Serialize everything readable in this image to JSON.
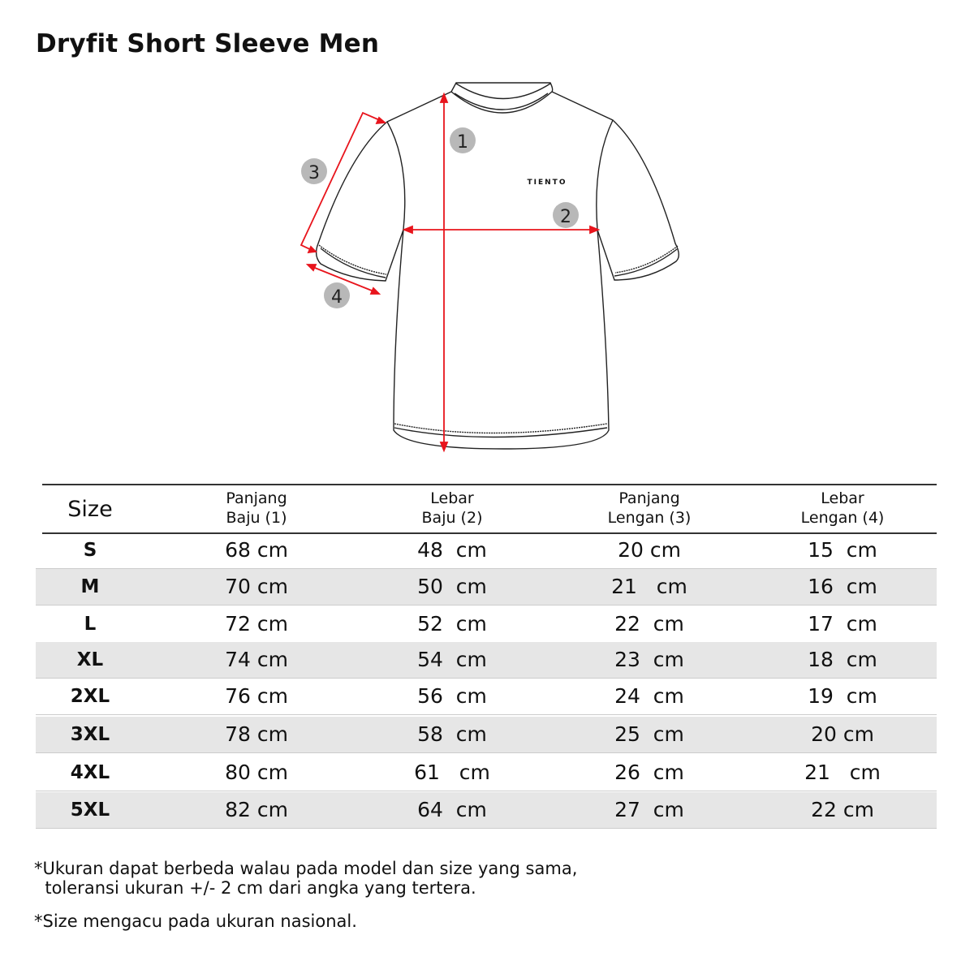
{
  "title": "Dryfit Short Sleeve Men",
  "diagram": {
    "brand_logo": "TIENTO",
    "markers": [
      "1",
      "2",
      "3",
      "4"
    ],
    "colors": {
      "measure_line": "#e8141c",
      "marker_bg": "#b8b8b8",
      "row_shade": "#e6e6e6"
    }
  },
  "table": {
    "headers": [
      {
        "line1": "Size",
        "line2": ""
      },
      {
        "line1": "Panjang",
        "line2": "Baju (1)"
      },
      {
        "line1": "Lebar",
        "line2": "Baju (2)"
      },
      {
        "line1": "Panjang",
        "line2": "Lengan (3)"
      },
      {
        "line1": "Lebar",
        "line2": "Lengan (4)"
      }
    ],
    "rows": [
      [
        "S",
        "68 cm",
        "48  cm",
        "20 cm",
        "15  cm"
      ],
      [
        "M",
        "70 cm",
        "50  cm",
        "21   cm",
        "16  cm"
      ],
      [
        "L",
        "72 cm",
        "52  cm",
        "22  cm",
        "17  cm"
      ],
      [
        "XL",
        "74 cm",
        "54  cm",
        "23  cm",
        "18  cm"
      ],
      [
        "2XL",
        "76 cm",
        "56  cm",
        "24  cm",
        "19  cm"
      ],
      [
        "3XL",
        "78 cm",
        "58  cm",
        "25  cm",
        "20 cm"
      ],
      [
        "4XL",
        "80 cm",
        "61   cm",
        "26  cm",
        "21   cm"
      ],
      [
        "5XL",
        "82 cm",
        "64  cm",
        "27  cm",
        "22 cm"
      ]
    ]
  },
  "notes": [
    "*Ukuran dapat berbeda walau pada model dan size yang sama,",
    "  toleransi ukuran +/- 2 cm dari angka yang tertera.",
    "*Size mengacu pada ukuran nasional."
  ]
}
